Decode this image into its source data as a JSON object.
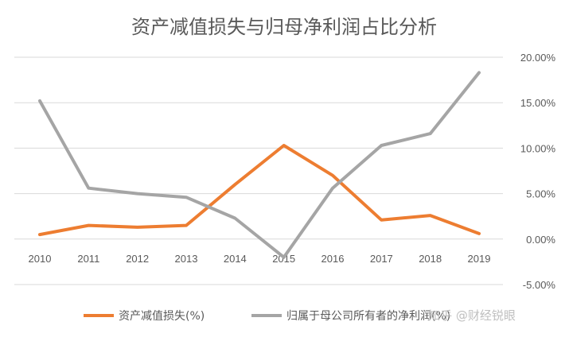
{
  "chart_data": {
    "type": "line",
    "title": "资产减值损失与归母净利润占比分析",
    "categories": [
      "2010",
      "2011",
      "2012",
      "2013",
      "2014",
      "2015",
      "2016",
      "2017",
      "2018",
      "2019"
    ],
    "y_ticks": [
      "20.00%",
      "15.00%",
      "10.00%",
      "5.00%",
      "0.00%",
      "-5.00%"
    ],
    "ylim": [
      -5,
      20
    ],
    "y_axis_position": "right",
    "grid": true,
    "legend_position": "bottom",
    "series": [
      {
        "name": "资产减值损失(%)",
        "color": "#ed7d31",
        "values": [
          0.5,
          1.5,
          1.3,
          1.5,
          6.0,
          10.3,
          7.0,
          2.1,
          2.6,
          0.6
        ]
      },
      {
        "name": "归属于母公司所有者的净利润(%)",
        "color": "#a5a5a5",
        "values": [
          15.2,
          5.6,
          5.0,
          4.6,
          2.3,
          -2.0,
          5.6,
          10.3,
          11.6,
          18.3
        ]
      }
    ]
  },
  "watermark": "知乎 @财经锐眼"
}
